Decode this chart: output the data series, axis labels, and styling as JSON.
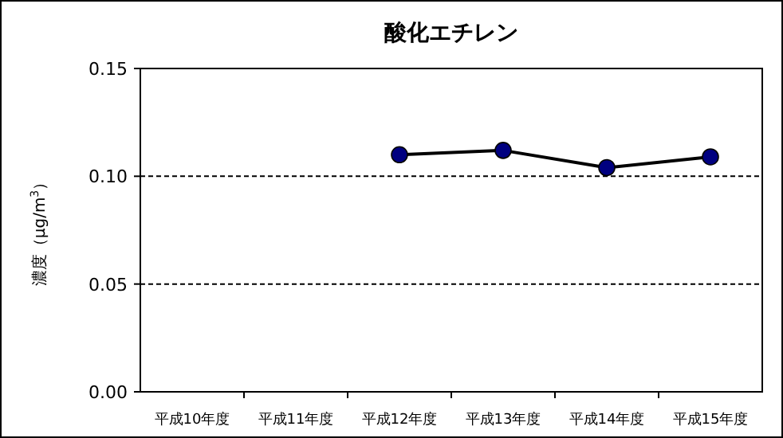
{
  "chart_data": {
    "type": "line",
    "title": "酸化エチレン",
    "ylabel": "濃度（μg/m$^{3}$）",
    "categories": [
      "平成10年度",
      "平成11年度",
      "平成12年度",
      "平成13年度",
      "平成14年度",
      "平成15年度"
    ],
    "series": [
      {
        "color": "#000080",
        "values": [
          null,
          null,
          0.11,
          0.112,
          0.104,
          0.109
        ]
      }
    ],
    "ylim": [
      0,
      0.15
    ],
    "yticks": [
      {
        "value": 0,
        "label": "0.00"
      },
      {
        "value": 0.05,
        "label": "0.05"
      },
      {
        "value": 0.1,
        "label": "0.10"
      },
      {
        "value": 0.15,
        "label": "0.15"
      }
    ],
    "grid": "y",
    "marker": "circle",
    "line_style": "solid"
  }
}
